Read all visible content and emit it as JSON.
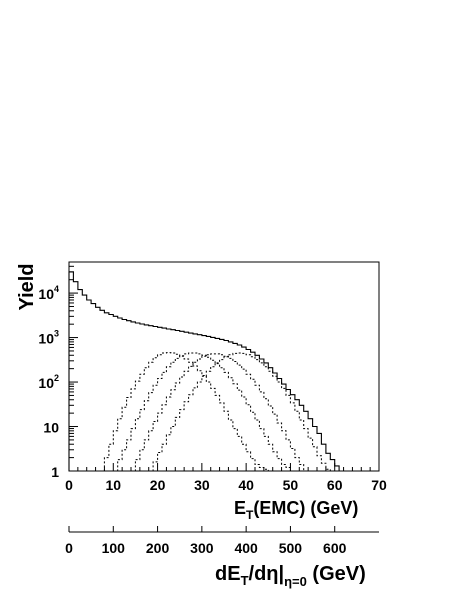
{
  "chart_data": {
    "type": "line",
    "title": "",
    "xlabel": "E",
    "xlabel_sub": "T",
    "xlabel_rest": "(EMC) (GeV)",
    "ylabel": "Yield",
    "xlim": [
      0,
      70
    ],
    "ylim": [
      1,
      50000
    ],
    "yscale": "log",
    "grid": false,
    "x_ticks": [
      0,
      10,
      20,
      30,
      40,
      50,
      60,
      70
    ],
    "y_ticks": [
      {
        "value": 1,
        "base": "1",
        "exp": ""
      },
      {
        "value": 10,
        "base": "10",
        "exp": ""
      },
      {
        "value": 100,
        "base": "10",
        "exp": "2"
      },
      {
        "value": 1000,
        "base": "10",
        "exp": "3"
      },
      {
        "value": 10000,
        "base": "10",
        "exp": "4"
      }
    ],
    "series": [
      {
        "style": "solid",
        "x": [
          0,
          1,
          2,
          3,
          4,
          5,
          6,
          7,
          8,
          9,
          10,
          11,
          12,
          13,
          14,
          15,
          16,
          17,
          18,
          19,
          20,
          21,
          22,
          23,
          24,
          25,
          26,
          27,
          28,
          29,
          30,
          31,
          32,
          33,
          34,
          35,
          36,
          37,
          38,
          39,
          40,
          41,
          42,
          43,
          44,
          45,
          46,
          47,
          48,
          49,
          50,
          51,
          52,
          53,
          54,
          55,
          56,
          57,
          58,
          59,
          60,
          61
        ],
        "y": [
          30000,
          18000,
          12000,
          9000,
          7000,
          5800,
          4800,
          4100,
          3600,
          3300,
          3000,
          2750,
          2550,
          2400,
          2250,
          2130,
          2020,
          1930,
          1850,
          1770,
          1700,
          1630,
          1560,
          1500,
          1440,
          1380,
          1320,
          1260,
          1210,
          1160,
          1110,
          1060,
          1010,
          960,
          910,
          860,
          800,
          740,
          680,
          610,
          540,
          470,
          400,
          330,
          270,
          210,
          160,
          120,
          90,
          68,
          52,
          40,
          30,
          22,
          15,
          10,
          7,
          4,
          2.5,
          1.8,
          1.3,
          1
        ]
      },
      {
        "style": "dotted",
        "x": [
          7,
          8,
          9,
          10,
          11,
          12,
          13,
          14,
          15,
          16,
          17,
          18,
          19,
          20,
          21,
          22,
          23,
          24,
          25,
          26,
          27,
          28,
          29,
          30,
          31,
          32,
          33,
          34,
          35,
          36,
          37,
          38,
          39,
          40,
          41,
          42,
          43,
          44,
          45
        ],
        "y": [
          1,
          2,
          4,
          8,
          15,
          27,
          45,
          70,
          105,
          150,
          210,
          280,
          350,
          410,
          450,
          460,
          450,
          420,
          380,
          330,
          280,
          230,
          180,
          140,
          100,
          72,
          50,
          34,
          22,
          14,
          9,
          6,
          4,
          2.7,
          1.9,
          1.4,
          1.2,
          1.1,
          1
        ]
      },
      {
        "style": "dotted",
        "x": [
          10,
          11,
          12,
          13,
          14,
          15,
          16,
          17,
          18,
          19,
          20,
          21,
          22,
          23,
          24,
          25,
          26,
          27,
          28,
          29,
          30,
          31,
          32,
          33,
          34,
          35,
          36,
          37,
          38,
          39,
          40,
          41,
          42,
          43,
          44,
          45,
          46,
          47,
          48,
          49,
          50
        ],
        "y": [
          1,
          1.8,
          3,
          5,
          9,
          15,
          24,
          38,
          58,
          85,
          120,
          165,
          220,
          280,
          340,
          390,
          430,
          450,
          450,
          430,
          400,
          360,
          310,
          260,
          210,
          165,
          125,
          92,
          66,
          46,
          31,
          21,
          14,
          9,
          6,
          4,
          2.7,
          1.9,
          1.4,
          1.2,
          1
        ]
      },
      {
        "style": "dotted",
        "x": [
          14,
          15,
          16,
          17,
          18,
          19,
          20,
          21,
          22,
          23,
          24,
          25,
          26,
          27,
          28,
          29,
          30,
          31,
          32,
          33,
          34,
          35,
          36,
          37,
          38,
          39,
          40,
          41,
          42,
          43,
          44,
          45,
          46,
          47,
          48,
          49,
          50,
          51,
          52,
          53
        ],
        "y": [
          1,
          1.8,
          3,
          5,
          8,
          13,
          20,
          31,
          46,
          67,
          95,
          130,
          175,
          225,
          280,
          330,
          380,
          410,
          430,
          430,
          410,
          380,
          340,
          290,
          240,
          195,
          150,
          115,
          85,
          60,
          42,
          29,
          19,
          12,
          8,
          5,
          3.2,
          2,
          1.4,
          1
        ]
      },
      {
        "style": "dotted",
        "x": [
          18,
          19,
          20,
          21,
          22,
          23,
          24,
          25,
          26,
          27,
          28,
          29,
          30,
          31,
          32,
          33,
          34,
          35,
          36,
          37,
          38,
          39,
          40,
          41,
          42,
          43,
          44,
          45,
          46,
          47,
          48,
          49,
          50,
          51,
          52,
          53,
          54,
          55,
          56,
          57,
          58,
          59
        ],
        "y": [
          1,
          1.6,
          2.6,
          4,
          6.5,
          10,
          16,
          24,
          36,
          52,
          74,
          100,
          135,
          175,
          220,
          270,
          320,
          370,
          410,
          440,
          450,
          440,
          410,
          370,
          320,
          270,
          220,
          175,
          135,
          100,
          72,
          50,
          34,
          22,
          14,
          9,
          5.5,
          3.5,
          2.2,
          1.5,
          1.1,
          1
        ]
      }
    ]
  },
  "secondary_axis": {
    "label": "dE",
    "label_sub": "T",
    "label_rest": "/dη|",
    "label_sub2": "η=0",
    "label_units": " (GeV)",
    "ticks": [
      0,
      100,
      200,
      300,
      400,
      500,
      600
    ],
    "range": [
      0,
      700
    ]
  }
}
